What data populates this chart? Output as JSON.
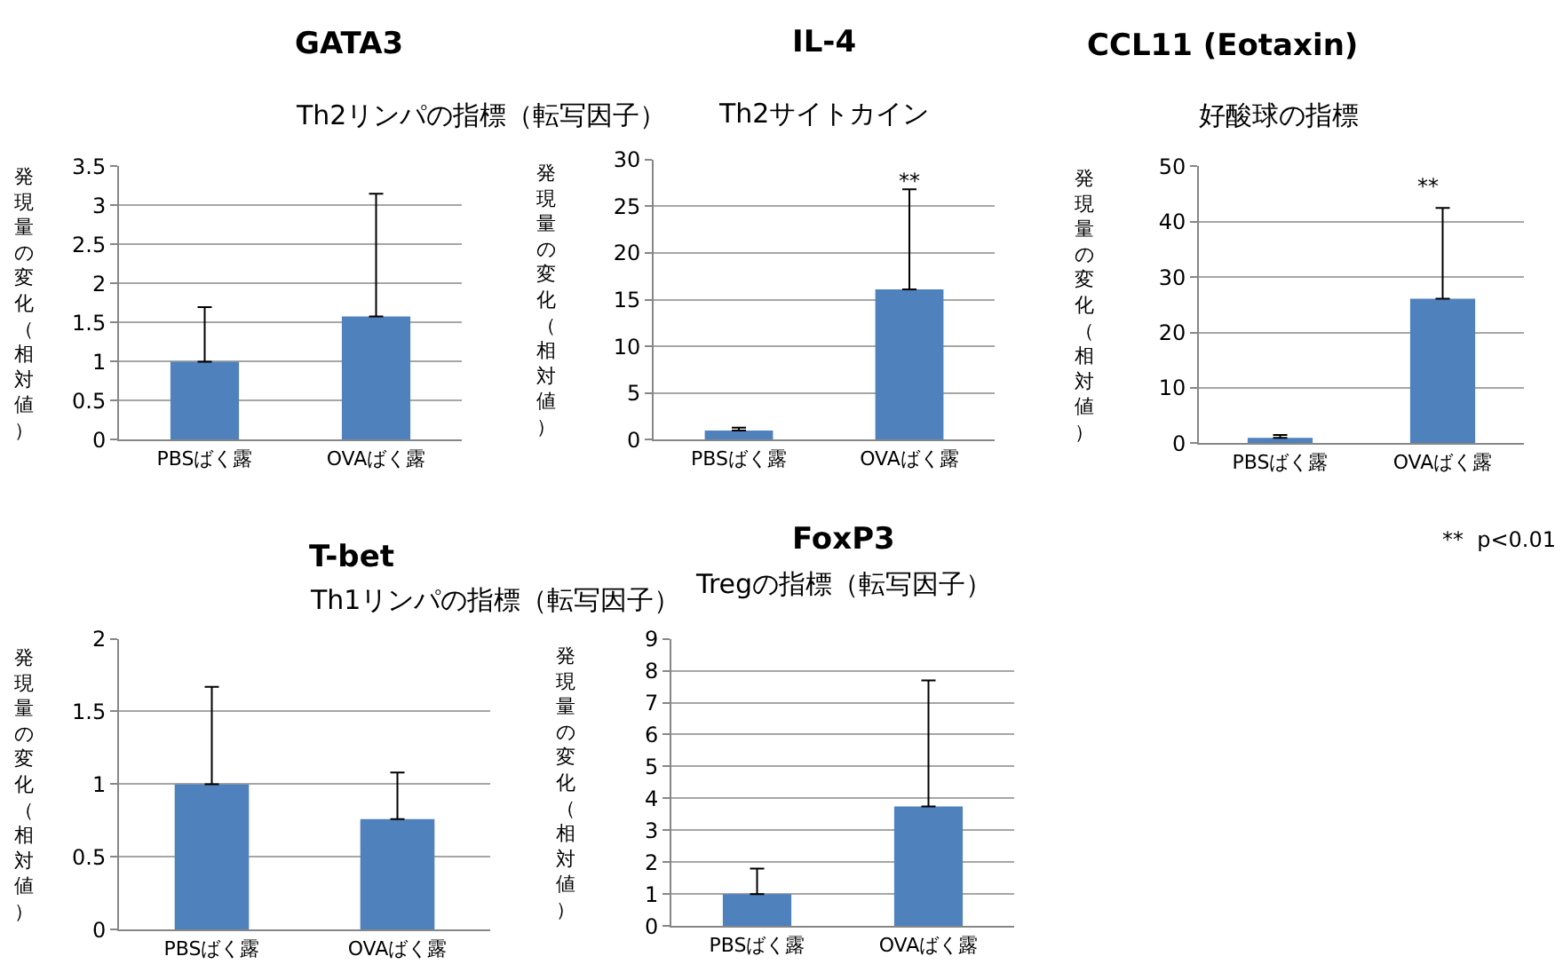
{
  "chart_data": [
    {
      "type": "bar",
      "title": "GATA3",
      "subtitle": "Th2リンパの指標（転写因子）",
      "ylabel": "発現量の変化（相対値）",
      "categories": [
        "PBSばく露",
        "OVAばく露"
      ],
      "values": [
        1,
        1.58
      ],
      "errors": [
        [
          1,
          1.7
        ],
        [
          1.58,
          3.15
        ]
      ],
      "color": "#4f81bd",
      "ylim": [
        0,
        3.5
      ],
      "yticks": [
        0,
        0.5,
        1,
        1.5,
        2,
        2.5,
        3,
        3.5
      ],
      "grid": "y"
    },
    {
      "type": "bar",
      "title": "IL-4",
      "subtitle": "Th2サイトカイン",
      "ylabel": "発現量の変化（相対値）",
      "categories": [
        "PBSばく露",
        "OVAばく露"
      ],
      "values": [
        1,
        16.1
      ],
      "errors": [
        [
          1,
          1.3
        ],
        [
          16.1,
          26.8
        ]
      ],
      "color": "#4f81bd",
      "ylim": [
        0,
        30
      ],
      "yticks": [
        0,
        5,
        10,
        15,
        20,
        25,
        30
      ],
      "grid": "y",
      "annotations": [
        "**"
      ]
    },
    {
      "type": "bar",
      "title": "CCL11 (Eotaxin)",
      "subtitle": "好酸球の指標",
      "ylabel": "発現量の変化（相対値）",
      "categories": [
        "PBSばく露",
        "OVAばく露"
      ],
      "values": [
        1,
        26.1
      ],
      "errors": [
        [
          1,
          1.5
        ],
        [
          26.1,
          42.5
        ]
      ],
      "color": "#4f81bd",
      "ylim": [
        0,
        50
      ],
      "yticks": [
        0,
        10,
        20,
        30,
        40,
        50
      ],
      "grid": "y",
      "annotations": [
        "**",
        "**  p<0.01"
      ]
    },
    {
      "type": "bar",
      "title": "T-bet",
      "subtitle": "Th1リンパの指標（転写因子）",
      "ylabel": "発現量の変化（相対値）",
      "categories": [
        "PBSばく露",
        "OVAばく露"
      ],
      "values": [
        1,
        0.76
      ],
      "errors": [
        [
          1,
          1.67
        ],
        [
          0.76,
          1.08
        ]
      ],
      "color": "#4f81bd",
      "ylim": [
        0,
        2
      ],
      "yticks": [
        0,
        0.5,
        1,
        1.5,
        2
      ],
      "grid": "y"
    },
    {
      "type": "bar",
      "title": "FoxP3",
      "subtitle": "Tregの指標（転写因子）",
      "ylabel": "発現量の変化（相対値）",
      "categories": [
        "PBSばく露",
        "OVAばく露"
      ],
      "values": [
        1,
        3.75
      ],
      "errors": [
        [
          1,
          1.8
        ],
        [
          3.75,
          7.7
        ]
      ],
      "color": "#4f81bd",
      "ylim": [
        0,
        9
      ],
      "yticks": [
        0,
        1,
        2,
        3,
        4,
        5,
        6,
        7,
        8,
        9
      ],
      "grid": "y"
    }
  ]
}
